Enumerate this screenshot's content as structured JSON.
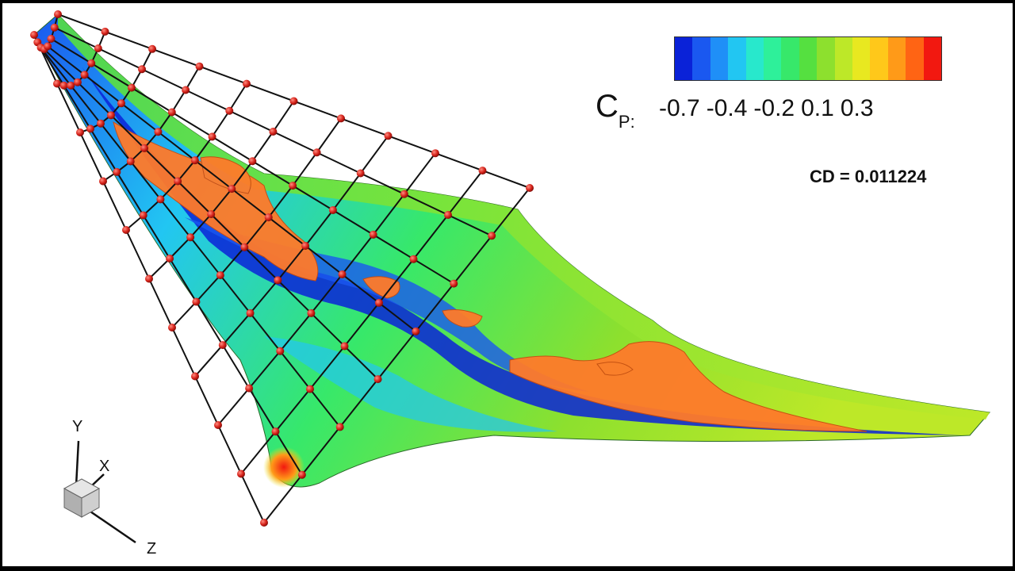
{
  "legend": {
    "symbol": "C",
    "subscript": "P:",
    "ticks": [
      "-0.7",
      "-0.4",
      "-0.2",
      "0.1",
      "0.3"
    ],
    "colors": [
      "#0a22d8",
      "#1a58f0",
      "#1f8ff7",
      "#22c6f2",
      "#28e8cc",
      "#2ef09a",
      "#37e86a",
      "#55e040",
      "#8de02e",
      "#bde828",
      "#e8e820",
      "#ffc81a",
      "#ff9a18",
      "#ff6414",
      "#f21810"
    ]
  },
  "drag": {
    "label": "CD = 0.011224"
  },
  "axes": {
    "y": "Y",
    "x": "X",
    "z": "Z"
  }
}
